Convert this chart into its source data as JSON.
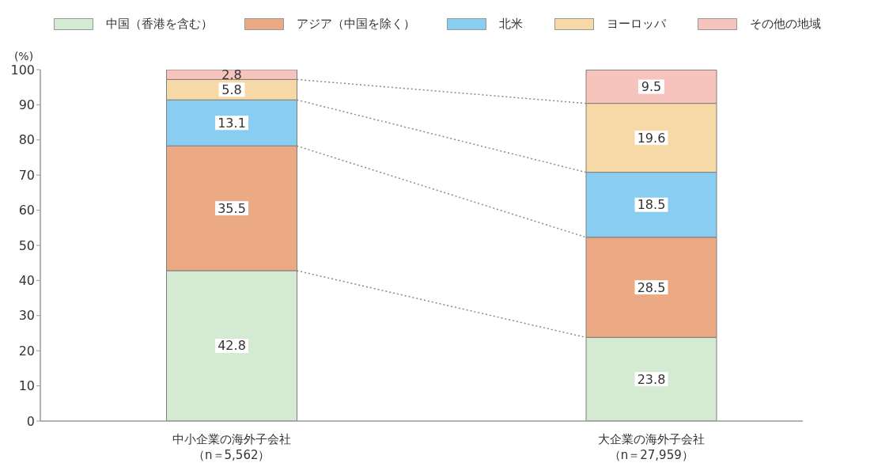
{
  "chart_data": {
    "type": "bar",
    "stacked": true,
    "ylabel": "(%)",
    "categories": [
      "中小企業の海外子会社（n＝5,562）",
      "大企業の海外子会社（n＝27,959）"
    ],
    "series": [
      {
        "name": "中国（香港を含む）",
        "color": "#d4ead3",
        "values": [
          42.8,
          23.8
        ]
      },
      {
        "name": "アジア（中国を除く）",
        "color": "#eba984",
        "values": [
          35.5,
          28.5
        ]
      },
      {
        "name": "北米",
        "color": "#89cdf1",
        "values": [
          13.1,
          18.5
        ]
      },
      {
        "name": "ヨーロッパ",
        "color": "#f6d9a7",
        "values": [
          5.8,
          19.6
        ]
      },
      {
        "name": "その他の地域",
        "color": "#f6c3bd",
        "values": [
          2.8,
          9.5
        ]
      }
    ],
    "ylim": [
      0,
      100
    ],
    "yticks": [
      0,
      10,
      20,
      30,
      40,
      50,
      60,
      70,
      80,
      90,
      100
    ],
    "legend": "top",
    "data_labels": true
  }
}
